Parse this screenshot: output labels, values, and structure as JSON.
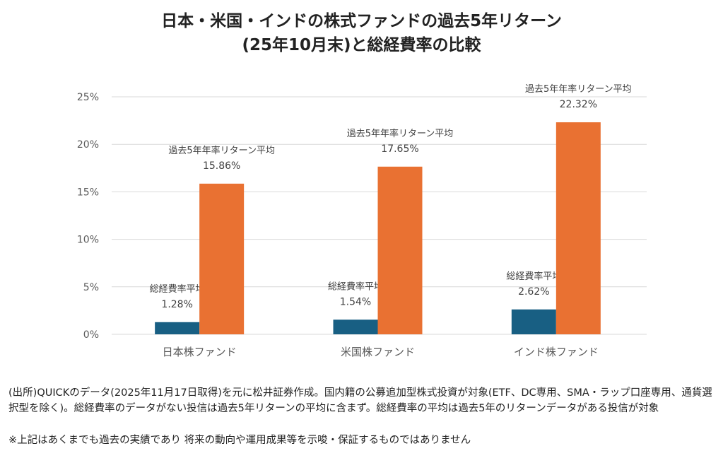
{
  "title_line1": "日本・米国・インドの株式ファンドの過去5年リターン",
  "title_line2": "(25年10月末)と総経費率の比較",
  "chart_data": {
    "type": "bar",
    "title": "日本・米国・インドの株式ファンドの過去5年リターン(25年10月末)と総経費率の比較",
    "categories": [
      "日本株ファンド",
      "米国株ファンド",
      "インド株ファンド"
    ],
    "series": [
      {
        "name": "総経費率平均",
        "color": "#185f83",
        "values": [
          1.28,
          1.54,
          2.62
        ],
        "labels": [
          "1.28%",
          "1.54%",
          "2.62%"
        ]
      },
      {
        "name": "過去5年年率リターン平均",
        "color": "#e97132",
        "values": [
          15.86,
          17.65,
          22.32
        ],
        "labels": [
          "15.86%",
          "17.65%",
          "22.32%"
        ]
      }
    ],
    "ylim": [
      0,
      25
    ],
    "yticks": [
      0,
      5,
      10,
      15,
      20,
      25
    ],
    "ytick_labels": [
      "0%",
      "5%",
      "10%",
      "15%",
      "20%",
      "25%"
    ],
    "grid": true,
    "xlabel": "",
    "ylabel": ""
  },
  "notes": {
    "source": "(出所)QUICKのデータ(2025年11月17日取得)を元に松井証券作成。国内籍の公募追加型株式投資が対象(ETF、DC専用、SMA・ラップ口座専用、通貨選択型を除く)。総経費率のデータがない投信は過去5年リターンの平均に含まず。総経費率の平均は過去5年のリターンデータがある投信が対象",
    "disclaimer": "※上記はあくまでも過去の実績であり 将来の動向や運用成果等を示唆・保証するものではありません"
  }
}
